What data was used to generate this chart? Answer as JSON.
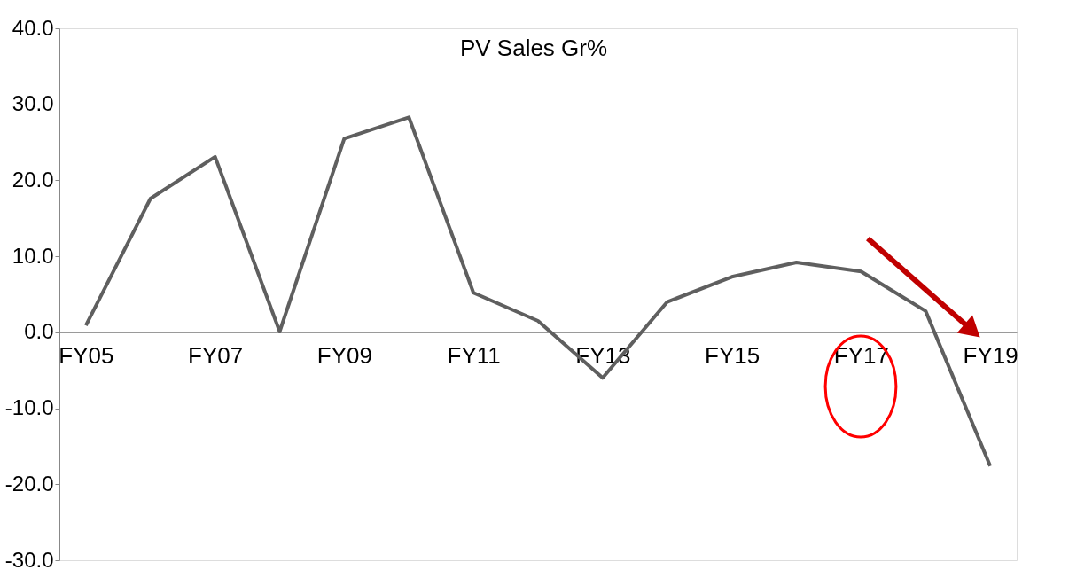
{
  "chart_data": {
    "type": "line",
    "title": "PV Sales Gr%",
    "categories": [
      "FY05",
      null,
      "FY07",
      null,
      "FY09",
      null,
      "FY11",
      null,
      "FY13",
      null,
      "FY15",
      null,
      "FY17",
      null,
      "FY19"
    ],
    "series": [
      {
        "color": "#5f5f5f",
        "values": [
          0.9,
          17.6,
          23.1,
          0.1,
          25.5,
          28.3,
          5.2,
          1.5,
          -6.0,
          4.0,
          7.3,
          9.2,
          8.0,
          2.8,
          -17.6
        ]
      }
    ],
    "ylim": [
      -30,
      40
    ],
    "yticks": [
      {
        "value": -30,
        "label": "-30.0"
      },
      {
        "value": -20,
        "label": "-20.0"
      },
      {
        "value": -10,
        "label": "-10.0"
      },
      {
        "value": 0,
        "label": "0.0"
      },
      {
        "value": 10,
        "label": "10.0"
      },
      {
        "value": 20,
        "label": "20.0"
      },
      {
        "value": 30,
        "label": "30.0"
      },
      {
        "value": 40,
        "label": "40.0"
      }
    ],
    "grid": false,
    "marker": "none",
    "line_style": "solid"
  }
}
